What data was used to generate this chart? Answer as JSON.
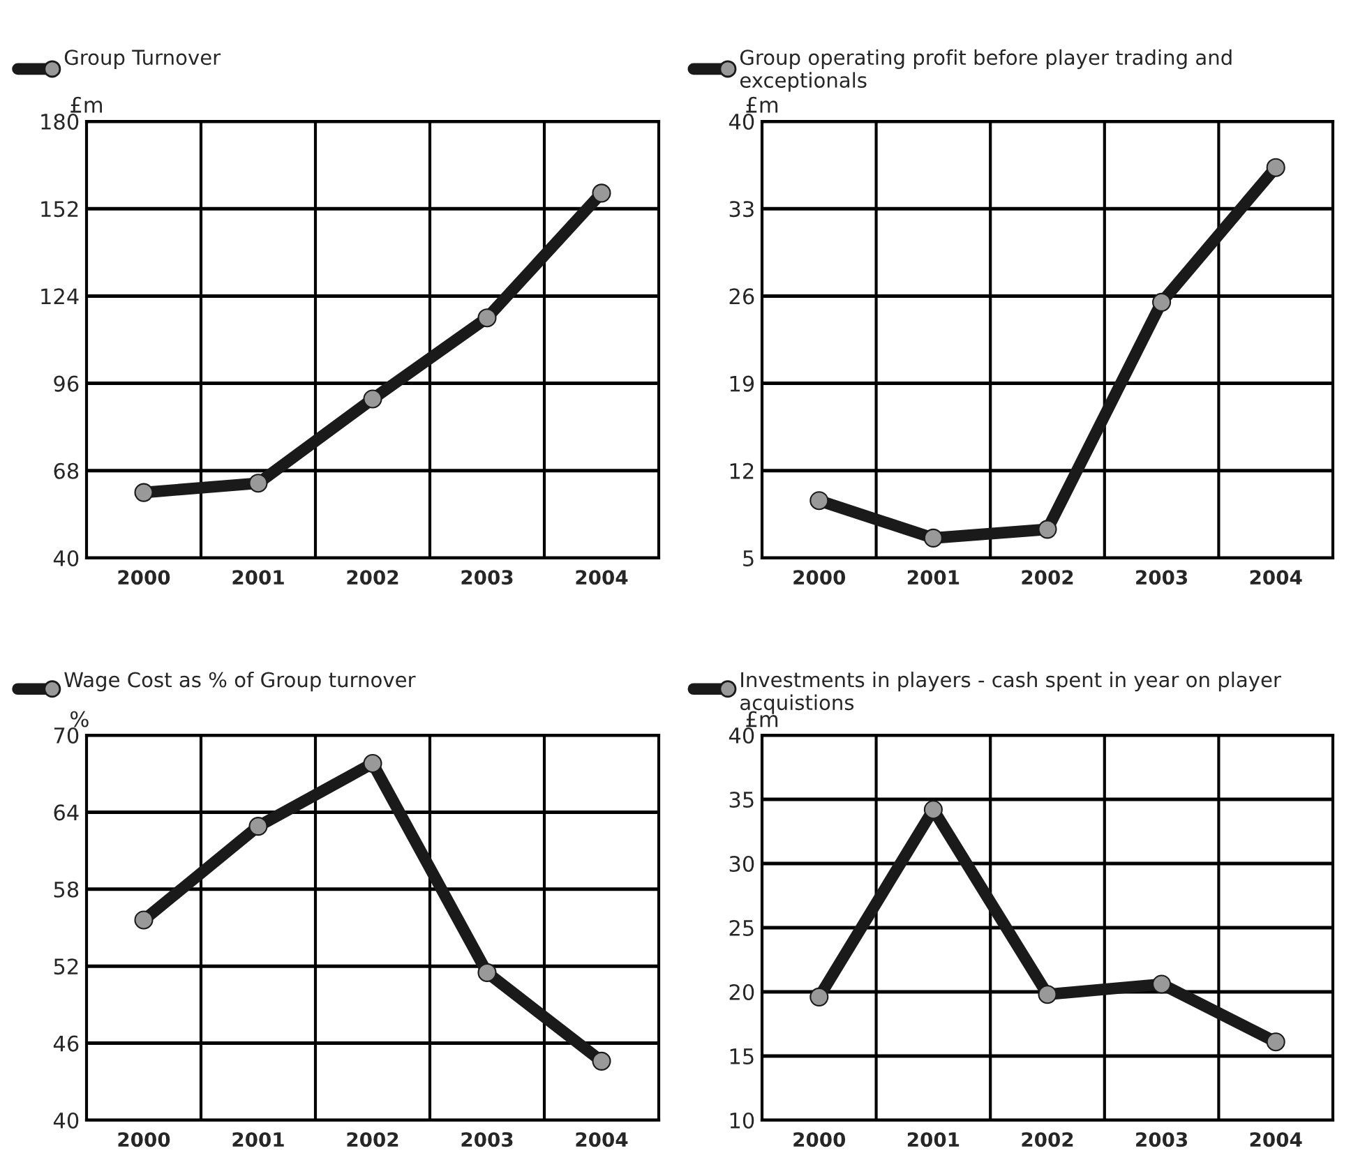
{
  "chart_data": [
    {
      "type": "line",
      "ylabel": "£m",
      "categories": [
        "2000",
        "2001",
        "2002",
        "2003",
        "2004"
      ],
      "ylim": [
        40,
        180
      ],
      "yticks": [
        40,
        68,
        96,
        124,
        152,
        180
      ],
      "grid": true,
      "legend": "top left",
      "marker": "circle",
      "line_style": "solid",
      "series": [
        {
          "name": "Group Turnover",
          "color": "#1a1a1a",
          "values": [
            61,
            64,
            91,
            117,
            157
          ]
        }
      ]
    },
    {
      "type": "line",
      "ylabel": "£m",
      "categories": [
        "2000",
        "2001",
        "2002",
        "2003",
        "2004"
      ],
      "ylim": [
        5,
        40
      ],
      "yticks": [
        5,
        12,
        19,
        26,
        33,
        40
      ],
      "grid": true,
      "legend": "top left",
      "marker": "circle",
      "line_style": "solid",
      "series": [
        {
          "name": "Group operating profit before player trading and exceptionals",
          "color": "#1a1a1a",
          "values": [
            9.6,
            6.6,
            7.3,
            25.5,
            36.3
          ]
        }
      ]
    },
    {
      "type": "line",
      "ylabel": "%",
      "categories": [
        "2000",
        "2001",
        "2002",
        "2003",
        "2004"
      ],
      "ylim": [
        40,
        70
      ],
      "yticks": [
        40,
        46,
        52,
        58,
        64,
        70
      ],
      "grid": true,
      "legend": "top left",
      "marker": "circle",
      "line_style": "solid",
      "series": [
        {
          "name": "Wage Cost as % of Group turnover",
          "color": "#1a1a1a",
          "values": [
            55.6,
            62.9,
            67.8,
            51.5,
            44.6
          ]
        }
      ]
    },
    {
      "type": "line",
      "ylabel": "£m",
      "categories": [
        "2000",
        "2001",
        "2002",
        "2003",
        "2004"
      ],
      "ylim": [
        10,
        40
      ],
      "yticks": [
        10,
        15,
        20,
        25,
        30,
        35,
        40
      ],
      "grid": true,
      "legend": "top left",
      "marker": "circle",
      "line_style": "solid",
      "series": [
        {
          "name": "Investments in players - cash spent in year on player acquistions",
          "color": "#1a1a1a",
          "values": [
            19.6,
            34.2,
            19.8,
            20.6,
            16.1
          ]
        }
      ]
    }
  ]
}
